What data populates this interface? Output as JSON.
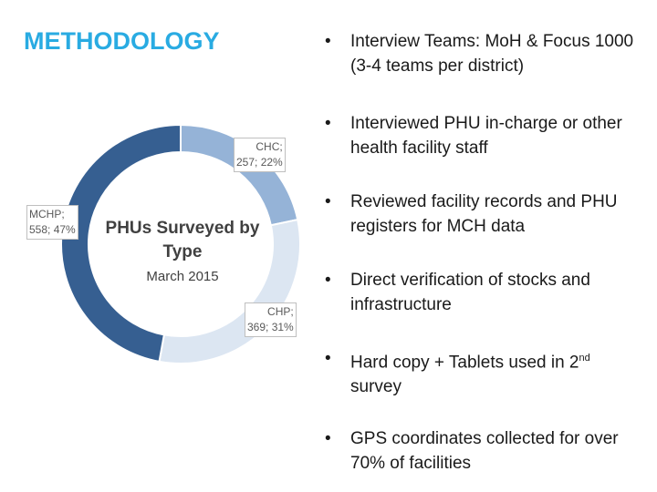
{
  "title": "METHODOLOGY",
  "chart_data": {
    "type": "pie",
    "style": "donut",
    "title": "PHUs Surveyed by Type",
    "subtitle": "March 2015",
    "slices": [
      {
        "label": "CHC",
        "value": 257,
        "percent": "22%",
        "color": "#95b3d7"
      },
      {
        "label": "CHP",
        "value": 369,
        "percent": "31%",
        "color": "#dce6f2"
      },
      {
        "label": "MCHP",
        "value": 558,
        "percent": "47%",
        "color": "#365f91"
      }
    ]
  },
  "bullets": [
    {
      "text": "Interview Teams:  MoH & Focus 1000  (3-4 teams per district)"
    },
    {
      "text": "Interviewed PHU in-charge or other health facility staff"
    },
    {
      "text": "Reviewed facility records and PHU registers for MCH data"
    },
    {
      "text": "Direct verification of stocks and infrastructure"
    },
    {
      "text": "Hard copy + Tablets used in 2",
      "sup": "nd",
      "text_after": " survey"
    },
    {
      "text": "GPS coordinates collected for over 70% of facilities"
    }
  ],
  "bullet_char": "•"
}
